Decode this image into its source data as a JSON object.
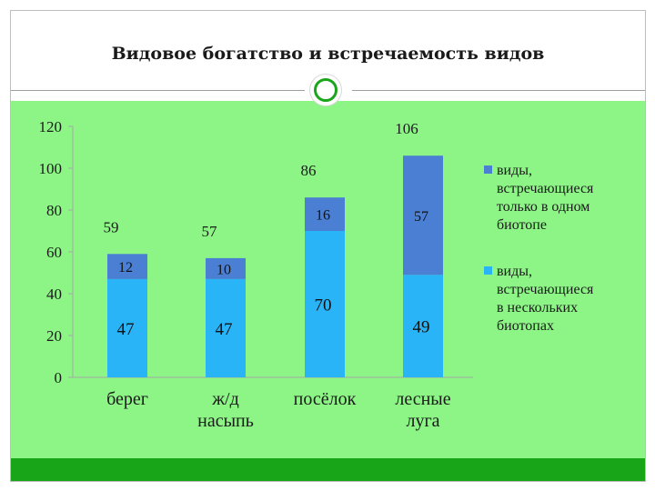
{
  "title": "Видовое богатство и встречаемость видов",
  "colors": {
    "only_one": "#4a7fd4",
    "several": "#2ab4f8",
    "panel": "#8cf586",
    "footer": "#18a518",
    "ring": "#1aa51a"
  },
  "chart_data": {
    "type": "bar",
    "stacked": true,
    "categories": [
      "берег",
      "ж/д насыпь",
      "посёлок",
      "лесные луга"
    ],
    "category_lines": [
      [
        "берег"
      ],
      [
        "ж/д",
        "насыпь"
      ],
      [
        "посёлок"
      ],
      [
        "лесные",
        "луга"
      ]
    ],
    "series": [
      {
        "name": "виды, встречающиеся в нескольких биотопах",
        "values": [
          47,
          47,
          70,
          49
        ]
      },
      {
        "name": "виды, встречающиеся только в одном биотопе",
        "values": [
          12,
          10,
          16,
          57
        ]
      }
    ],
    "totals": [
      59,
      57,
      86,
      106
    ],
    "y_ticks": [
      0,
      20,
      40,
      60,
      80,
      100,
      120
    ],
    "ylim": [
      0,
      120
    ],
    "grid": false,
    "legend": {
      "position": "right",
      "entries": [
        {
          "lines": [
            "виды,",
            "встречающиеся",
            "только в одном",
            "биотопе"
          ]
        },
        {
          "lines": [
            "виды,",
            "встречающиеся",
            "в нескольких",
            "биотопах"
          ]
        }
      ]
    }
  }
}
